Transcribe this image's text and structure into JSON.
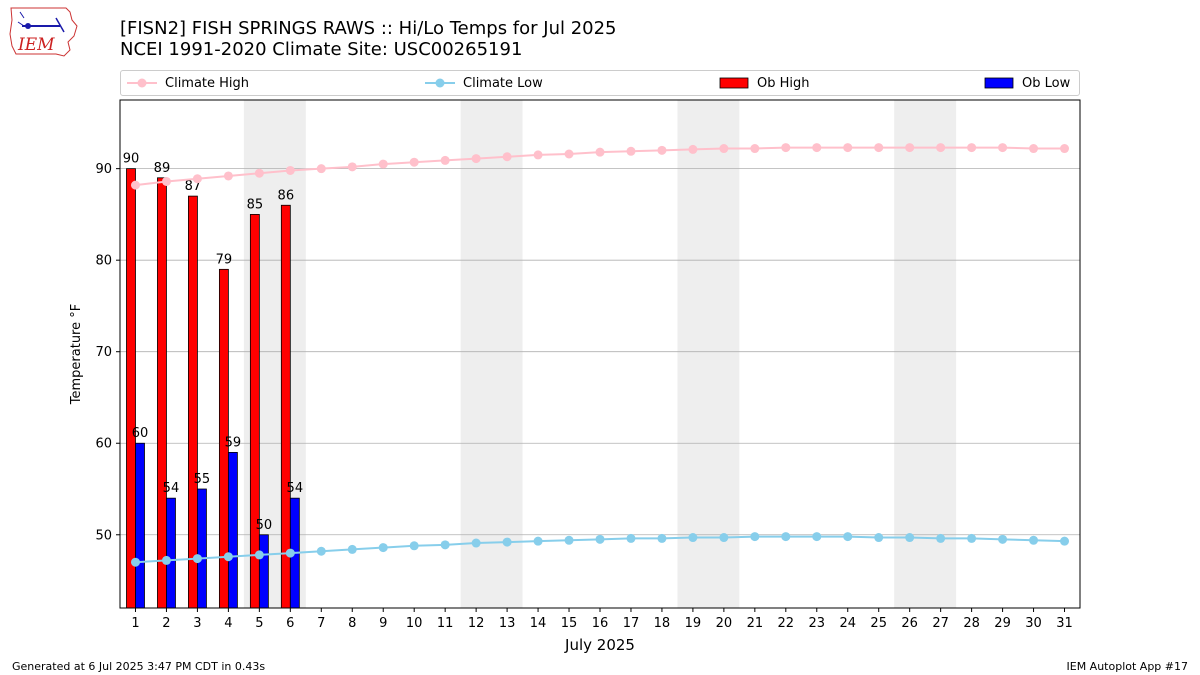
{
  "header": {
    "logo_text": "IEM",
    "title_line1": "[FISN2] FISH SPRINGS RAWS :: Hi/Lo Temps for Jul 2025",
    "title_line2": "NCEI 1991-2020 Climate Site: USC00265191"
  },
  "legend": {
    "climate_high": "Climate High",
    "climate_low": "Climate Low",
    "ob_high": "Ob High",
    "ob_low": "Ob Low"
  },
  "footer": {
    "generated": "Generated at 6 Jul 2025 3:47 PM CDT in 0.43s",
    "app": "IEM Autoplot App #17"
  },
  "colors": {
    "ob_high": "#ff0000",
    "ob_low": "#0000ff",
    "climate_high": "#ffc0cb",
    "climate_low": "#87ceeb",
    "weekend_shade": "#eeeeee",
    "grid": "#b0b0b0"
  },
  "chart_data": {
    "type": "bar",
    "xlabel": "July 2025",
    "ylabel": "Temperature °F",
    "ylim": [
      42,
      97.5
    ],
    "yticks": [
      50,
      60,
      70,
      80,
      90
    ],
    "grid": "horizontal",
    "legend_position": "top",
    "x": [
      1,
      2,
      3,
      4,
      5,
      6,
      7,
      8,
      9,
      10,
      11,
      12,
      13,
      14,
      15,
      16,
      17,
      18,
      19,
      20,
      21,
      22,
      23,
      24,
      25,
      26,
      27,
      28,
      29,
      30,
      31
    ],
    "weekend_shading": [
      [
        5,
        6
      ],
      [
        12,
        13
      ],
      [
        19,
        20
      ],
      [
        26,
        27
      ]
    ],
    "ob_high": [
      90,
      89,
      87,
      79,
      85,
      86
    ],
    "ob_low": [
      60,
      54,
      55,
      59,
      50,
      54
    ],
    "climate_high": [
      88.2,
      88.6,
      88.9,
      89.2,
      89.5,
      89.8,
      90.0,
      90.2,
      90.5,
      90.7,
      90.9,
      91.1,
      91.3,
      91.5,
      91.6,
      91.8,
      91.9,
      92.0,
      92.1,
      92.2,
      92.2,
      92.3,
      92.3,
      92.3,
      92.3,
      92.3,
      92.3,
      92.3,
      92.3,
      92.2,
      92.2
    ],
    "climate_low": [
      47.0,
      47.2,
      47.4,
      47.6,
      47.8,
      48.0,
      48.2,
      48.4,
      48.6,
      48.8,
      48.9,
      49.1,
      49.2,
      49.3,
      49.4,
      49.5,
      49.6,
      49.6,
      49.7,
      49.7,
      49.8,
      49.8,
      49.8,
      49.8,
      49.7,
      49.7,
      49.6,
      49.6,
      49.5,
      49.4,
      49.3
    ]
  }
}
